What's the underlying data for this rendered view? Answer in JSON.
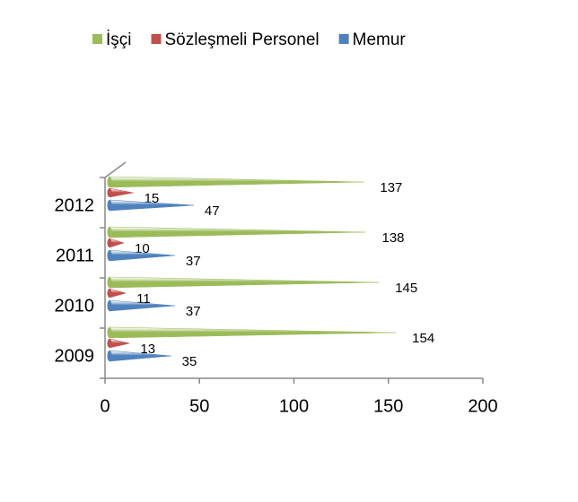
{
  "chart_data": {
    "type": "bar",
    "orientation": "horizontal",
    "categories": [
      "2009",
      "2010",
      "2011",
      "2012"
    ],
    "series": [
      {
        "name": "İşçi",
        "color": "#9bbb59",
        "values": [
          154,
          145,
          138,
          137
        ]
      },
      {
        "name": "Sözleşmeli Personel",
        "color": "#c0504d",
        "values": [
          13,
          11,
          10,
          15
        ]
      },
      {
        "name": "Memur",
        "color": "#4f81bd",
        "values": [
          35,
          37,
          37,
          47
        ]
      }
    ],
    "xlim": [
      0,
      200
    ],
    "xticks": [
      0,
      50,
      100,
      150,
      200
    ],
    "legend": "top"
  }
}
